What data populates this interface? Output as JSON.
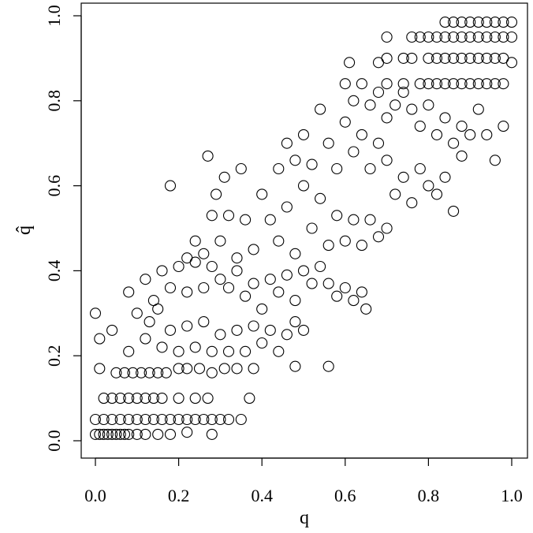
{
  "chart_data": {
    "type": "scatter",
    "title": "",
    "xlabel": "q",
    "ylabel": "q̂",
    "xlim": [
      0,
      1
    ],
    "ylim": [
      0,
      1
    ],
    "x_ticks": [
      "0.0",
      "0.2",
      "0.4",
      "0.6",
      "0.8",
      "1.0"
    ],
    "y_ticks": [
      "0.0",
      "0.2",
      "0.4",
      "0.6",
      "0.8",
      "1.0"
    ],
    "grid": false,
    "legend": "none",
    "marker": "open-circle",
    "series": [
      {
        "points": [
          [
            0.0,
            0.015
          ],
          [
            0.01,
            0.015
          ],
          [
            0.02,
            0.015
          ],
          [
            0.03,
            0.015
          ],
          [
            0.04,
            0.015
          ],
          [
            0.05,
            0.015
          ],
          [
            0.06,
            0.015
          ],
          [
            0.07,
            0.015
          ],
          [
            0.08,
            0.015
          ],
          [
            0.1,
            0.015
          ],
          [
            0.12,
            0.015
          ],
          [
            0.15,
            0.015
          ],
          [
            0.18,
            0.015
          ],
          [
            0.22,
            0.02
          ],
          [
            0.28,
            0.015
          ],
          [
            0.0,
            0.05
          ],
          [
            0.02,
            0.05
          ],
          [
            0.04,
            0.05
          ],
          [
            0.06,
            0.05
          ],
          [
            0.08,
            0.05
          ],
          [
            0.1,
            0.05
          ],
          [
            0.12,
            0.05
          ],
          [
            0.14,
            0.05
          ],
          [
            0.16,
            0.05
          ],
          [
            0.18,
            0.05
          ],
          [
            0.2,
            0.05
          ],
          [
            0.22,
            0.05
          ],
          [
            0.24,
            0.05
          ],
          [
            0.26,
            0.05
          ],
          [
            0.28,
            0.05
          ],
          [
            0.3,
            0.05
          ],
          [
            0.32,
            0.05
          ],
          [
            0.35,
            0.05
          ],
          [
            0.02,
            0.1
          ],
          [
            0.04,
            0.1
          ],
          [
            0.06,
            0.1
          ],
          [
            0.08,
            0.1
          ],
          [
            0.1,
            0.1
          ],
          [
            0.12,
            0.1
          ],
          [
            0.14,
            0.1
          ],
          [
            0.16,
            0.1
          ],
          [
            0.2,
            0.1
          ],
          [
            0.24,
            0.1
          ],
          [
            0.27,
            0.1
          ],
          [
            0.37,
            0.1
          ],
          [
            0.01,
            0.17
          ],
          [
            0.05,
            0.16
          ],
          [
            0.07,
            0.16
          ],
          [
            0.09,
            0.16
          ],
          [
            0.11,
            0.16
          ],
          [
            0.13,
            0.16
          ],
          [
            0.15,
            0.16
          ],
          [
            0.17,
            0.16
          ],
          [
            0.2,
            0.17
          ],
          [
            0.22,
            0.17
          ],
          [
            0.25,
            0.17
          ],
          [
            0.28,
            0.16
          ],
          [
            0.31,
            0.17
          ],
          [
            0.34,
            0.17
          ],
          [
            0.38,
            0.17
          ],
          [
            0.48,
            0.175
          ],
          [
            0.56,
            0.175
          ],
          [
            0.0,
            0.3
          ],
          [
            0.01,
            0.24
          ],
          [
            0.04,
            0.26
          ],
          [
            0.08,
            0.21
          ],
          [
            0.1,
            0.3
          ],
          [
            0.12,
            0.24
          ],
          [
            0.13,
            0.28
          ],
          [
            0.15,
            0.31
          ],
          [
            0.16,
            0.22
          ],
          [
            0.18,
            0.26
          ],
          [
            0.2,
            0.21
          ],
          [
            0.22,
            0.27
          ],
          [
            0.24,
            0.22
          ],
          [
            0.26,
            0.28
          ],
          [
            0.28,
            0.21
          ],
          [
            0.3,
            0.25
          ],
          [
            0.32,
            0.21
          ],
          [
            0.34,
            0.26
          ],
          [
            0.36,
            0.21
          ],
          [
            0.38,
            0.27
          ],
          [
            0.4,
            0.23
          ],
          [
            0.42,
            0.26
          ],
          [
            0.44,
            0.21
          ],
          [
            0.46,
            0.25
          ],
          [
            0.48,
            0.28
          ],
          [
            0.5,
            0.26
          ],
          [
            0.08,
            0.35
          ],
          [
            0.12,
            0.38
          ],
          [
            0.14,
            0.33
          ],
          [
            0.16,
            0.4
          ],
          [
            0.18,
            0.36
          ],
          [
            0.2,
            0.41
          ],
          [
            0.22,
            0.35
          ],
          [
            0.24,
            0.42
          ],
          [
            0.26,
            0.36
          ],
          [
            0.28,
            0.41
          ],
          [
            0.3,
            0.38
          ],
          [
            0.32,
            0.36
          ],
          [
            0.34,
            0.4
          ],
          [
            0.36,
            0.34
          ],
          [
            0.38,
            0.37
          ],
          [
            0.4,
            0.31
          ],
          [
            0.42,
            0.38
          ],
          [
            0.44,
            0.35
          ],
          [
            0.46,
            0.39
          ],
          [
            0.48,
            0.33
          ],
          [
            0.5,
            0.4
          ],
          [
            0.52,
            0.37
          ],
          [
            0.54,
            0.41
          ],
          [
            0.56,
            0.37
          ],
          [
            0.58,
            0.34
          ],
          [
            0.6,
            0.36
          ],
          [
            0.62,
            0.33
          ],
          [
            0.64,
            0.35
          ],
          [
            0.65,
            0.31
          ],
          [
            0.18,
            0.6
          ],
          [
            0.22,
            0.43
          ],
          [
            0.24,
            0.47
          ],
          [
            0.26,
            0.44
          ],
          [
            0.27,
            0.67
          ],
          [
            0.28,
            0.53
          ],
          [
            0.29,
            0.58
          ],
          [
            0.3,
            0.47
          ],
          [
            0.31,
            0.62
          ],
          [
            0.32,
            0.53
          ],
          [
            0.34,
            0.43
          ],
          [
            0.35,
            0.64
          ],
          [
            0.36,
            0.52
          ],
          [
            0.38,
            0.45
          ],
          [
            0.4,
            0.58
          ],
          [
            0.42,
            0.52
          ],
          [
            0.44,
            0.47
          ],
          [
            0.46,
            0.55
          ],
          [
            0.48,
            0.44
          ],
          [
            0.5,
            0.6
          ],
          [
            0.52,
            0.5
          ],
          [
            0.54,
            0.57
          ],
          [
            0.56,
            0.46
          ],
          [
            0.58,
            0.53
          ],
          [
            0.6,
            0.47
          ],
          [
            0.62,
            0.52
          ],
          [
            0.64,
            0.46
          ],
          [
            0.66,
            0.52
          ],
          [
            0.68,
            0.48
          ],
          [
            0.7,
            0.5
          ],
          [
            0.44,
            0.64
          ],
          [
            0.46,
            0.7
          ],
          [
            0.48,
            0.66
          ],
          [
            0.5,
            0.72
          ],
          [
            0.52,
            0.65
          ],
          [
            0.54,
            0.78
          ],
          [
            0.56,
            0.7
          ],
          [
            0.58,
            0.64
          ],
          [
            0.6,
            0.75
          ],
          [
            0.62,
            0.68
          ],
          [
            0.64,
            0.72
          ],
          [
            0.66,
            0.64
          ],
          [
            0.68,
            0.7
          ],
          [
            0.7,
            0.66
          ],
          [
            0.72,
            0.58
          ],
          [
            0.74,
            0.62
          ],
          [
            0.76,
            0.56
          ],
          [
            0.78,
            0.64
          ],
          [
            0.8,
            0.6
          ],
          [
            0.82,
            0.58
          ],
          [
            0.84,
            0.62
          ],
          [
            0.86,
            0.54
          ],
          [
            0.88,
            0.67
          ],
          [
            0.6,
            0.84
          ],
          [
            0.62,
            0.8
          ],
          [
            0.64,
            0.84
          ],
          [
            0.66,
            0.79
          ],
          [
            0.68,
            0.82
          ],
          [
            0.7,
            0.76
          ],
          [
            0.72,
            0.79
          ],
          [
            0.74,
            0.82
          ],
          [
            0.76,
            0.78
          ],
          [
            0.78,
            0.74
          ],
          [
            0.8,
            0.79
          ],
          [
            0.82,
            0.72
          ],
          [
            0.84,
            0.76
          ],
          [
            0.86,
            0.7
          ],
          [
            0.88,
            0.74
          ],
          [
            0.9,
            0.72
          ],
          [
            0.92,
            0.78
          ],
          [
            0.94,
            0.72
          ],
          [
            0.96,
            0.66
          ],
          [
            0.98,
            0.74
          ],
          [
            0.61,
            0.89
          ],
          [
            0.7,
            0.84
          ],
          [
            0.74,
            0.84
          ],
          [
            0.78,
            0.84
          ],
          [
            0.8,
            0.84
          ],
          [
            0.82,
            0.84
          ],
          [
            0.84,
            0.84
          ],
          [
            0.86,
            0.84
          ],
          [
            0.88,
            0.84
          ],
          [
            0.9,
            0.84
          ],
          [
            0.92,
            0.84
          ],
          [
            0.94,
            0.84
          ],
          [
            0.96,
            0.84
          ],
          [
            0.98,
            0.84
          ],
          [
            0.68,
            0.89
          ],
          [
            0.7,
            0.9
          ],
          [
            0.74,
            0.9
          ],
          [
            0.76,
            0.9
          ],
          [
            0.8,
            0.9
          ],
          [
            0.82,
            0.9
          ],
          [
            0.84,
            0.9
          ],
          [
            0.86,
            0.9
          ],
          [
            0.88,
            0.9
          ],
          [
            0.9,
            0.9
          ],
          [
            0.92,
            0.9
          ],
          [
            0.94,
            0.9
          ],
          [
            0.96,
            0.9
          ],
          [
            0.98,
            0.9
          ],
          [
            1.0,
            0.89
          ],
          [
            0.7,
            0.95
          ],
          [
            0.76,
            0.95
          ],
          [
            0.78,
            0.95
          ],
          [
            0.8,
            0.95
          ],
          [
            0.82,
            0.95
          ],
          [
            0.84,
            0.95
          ],
          [
            0.86,
            0.95
          ],
          [
            0.88,
            0.95
          ],
          [
            0.9,
            0.95
          ],
          [
            0.92,
            0.95
          ],
          [
            0.94,
            0.95
          ],
          [
            0.96,
            0.95
          ],
          [
            0.98,
            0.95
          ],
          [
            1.0,
            0.95
          ],
          [
            0.84,
            0.985
          ],
          [
            0.86,
            0.985
          ],
          [
            0.88,
            0.985
          ],
          [
            0.9,
            0.985
          ],
          [
            0.92,
            0.985
          ],
          [
            0.94,
            0.985
          ],
          [
            0.96,
            0.985
          ],
          [
            0.98,
            0.985
          ],
          [
            1.0,
            0.985
          ]
        ]
      }
    ]
  }
}
